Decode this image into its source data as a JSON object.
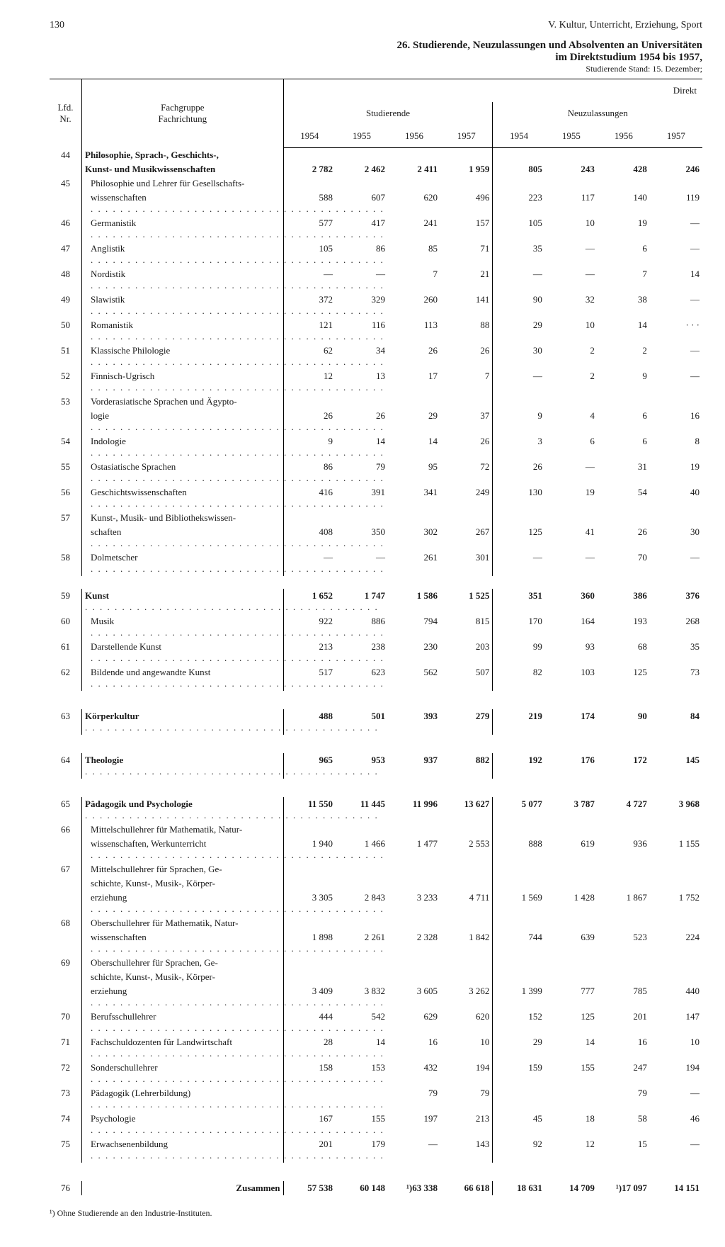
{
  "page_number": "130",
  "running_head": "V. Kultur, Unterricht, Erziehung, Sport",
  "title_line1": "26. Studierende, Neuzulassungen und Absolventen an Universitäten",
  "title_line2": "im Direktstudium 1954 bis 1957,",
  "title_line3": "Studierende Stand: 15. Dezember;",
  "corner_label": "Direkt",
  "col_lfd": "Lfd.\nNr.",
  "col_fach": "Fachgruppe\nFachrichtung",
  "grp_stud": "Studierende",
  "grp_neu": "Neuzulassungen",
  "years": [
    "1954",
    "1955",
    "1956",
    "1957",
    "1954",
    "1955",
    "1956",
    "1957"
  ],
  "rows": [
    {
      "n": "44",
      "label": "Philosophie, Sprach-, Geschichts-,",
      "bold": true,
      "vals": [
        "",
        "",
        "",
        "",
        "",
        "",
        "",
        ""
      ]
    },
    {
      "n": "",
      "label": "Kunst- und Musikwissenschaften",
      "bold": true,
      "nodots": true,
      "vals": [
        "2 782",
        "2 462",
        "2 411",
        "1 959",
        "805",
        "243",
        "428",
        "246"
      ]
    },
    {
      "n": "45",
      "label": "Philosophie und Lehrer für Gesellschafts-",
      "indent": true,
      "nodots": true,
      "vals": [
        "",
        "",
        "",
        "",
        "",
        "",
        "",
        ""
      ]
    },
    {
      "n": "",
      "label": "wissenschaften",
      "indent": true,
      "vals": [
        "588",
        "607",
        "620",
        "496",
        "223",
        "117",
        "140",
        "119"
      ]
    },
    {
      "n": "46",
      "label": "Germanistik",
      "indent": true,
      "vals": [
        "577",
        "417",
        "241",
        "157",
        "105",
        "10",
        "19",
        "—"
      ]
    },
    {
      "n": "47",
      "label": "Anglistik",
      "indent": true,
      "vals": [
        "105",
        "86",
        "85",
        "71",
        "35",
        "—",
        "6",
        "—"
      ]
    },
    {
      "n": "48",
      "label": "Nordistik",
      "indent": true,
      "vals": [
        "—",
        "—",
        "7",
        "21",
        "—",
        "—",
        "7",
        "14"
      ]
    },
    {
      "n": "49",
      "label": "Slawistik",
      "indent": true,
      "vals": [
        "372",
        "329",
        "260",
        "141",
        "90",
        "32",
        "38",
        "—"
      ]
    },
    {
      "n": "50",
      "label": "Romanistik",
      "indent": true,
      "vals": [
        "121",
        "116",
        "113",
        "88",
        "29",
        "10",
        "14",
        "· · ·"
      ]
    },
    {
      "n": "51",
      "label": "Klassische Philologie",
      "indent": true,
      "vals": [
        "62",
        "34",
        "26",
        "26",
        "30",
        "2",
        "2",
        "—"
      ]
    },
    {
      "n": "52",
      "label": "Finnisch-Ugrisch",
      "indent": true,
      "vals": [
        "12",
        "13",
        "17",
        "7",
        "—",
        "2",
        "9",
        "—"
      ]
    },
    {
      "n": "53",
      "label": "Vorderasiatische Sprachen und Ägypto-",
      "indent": true,
      "nodots": true,
      "vals": [
        "",
        "",
        "",
        "",
        "",
        "",
        "",
        ""
      ]
    },
    {
      "n": "",
      "label": "logie",
      "indent": true,
      "vals": [
        "26",
        "26",
        "29",
        "37",
        "9",
        "4",
        "6",
        "16"
      ]
    },
    {
      "n": "54",
      "label": "Indologie",
      "indent": true,
      "vals": [
        "9",
        "14",
        "14",
        "26",
        "3",
        "6",
        "6",
        "8"
      ]
    },
    {
      "n": "55",
      "label": "Ostasiatische Sprachen",
      "indent": true,
      "vals": [
        "86",
        "79",
        "95",
        "72",
        "26",
        "—",
        "31",
        "19"
      ]
    },
    {
      "n": "56",
      "label": "Geschichtswissenschaften",
      "indent": true,
      "vals": [
        "416",
        "391",
        "341",
        "249",
        "130",
        "19",
        "54",
        "40"
      ]
    },
    {
      "n": "57",
      "label": "Kunst-, Musik- und Bibliothekswissen-",
      "indent": true,
      "nodots": true,
      "vals": [
        "",
        "",
        "",
        "",
        "",
        "",
        "",
        ""
      ]
    },
    {
      "n": "",
      "label": "schaften",
      "indent": true,
      "vals": [
        "408",
        "350",
        "302",
        "267",
        "125",
        "41",
        "26",
        "30"
      ]
    },
    {
      "n": "58",
      "label": "Dolmetscher",
      "indent": true,
      "vals": [
        "—",
        "—",
        "261",
        "301",
        "—",
        "—",
        "70",
        "—"
      ]
    },
    {
      "spacer": true
    },
    {
      "n": "59",
      "label": "Kunst",
      "bold": true,
      "vals": [
        "1 652",
        "1 747",
        "1 586",
        "1 525",
        "351",
        "360",
        "386",
        "376"
      ]
    },
    {
      "n": "60",
      "label": "Musik",
      "indent": true,
      "vals": [
        "922",
        "886",
        "794",
        "815",
        "170",
        "164",
        "193",
        "268"
      ]
    },
    {
      "n": "61",
      "label": "Darstellende Kunst",
      "indent": true,
      "vals": [
        "213",
        "238",
        "230",
        "203",
        "99",
        "93",
        "68",
        "35"
      ]
    },
    {
      "n": "62",
      "label": "Bildende und angewandte Kunst",
      "indent": true,
      "vals": [
        "517",
        "623",
        "562",
        "507",
        "82",
        "103",
        "125",
        "73"
      ]
    },
    {
      "bigspacer": true
    },
    {
      "n": "63",
      "label": "Körperkultur",
      "bold": true,
      "vals": [
        "488",
        "501",
        "393",
        "279",
        "219",
        "174",
        "90",
        "84"
      ]
    },
    {
      "bigspacer": true
    },
    {
      "n": "64",
      "label": "Theologie",
      "bold": true,
      "vals": [
        "965",
        "953",
        "937",
        "882",
        "192",
        "176",
        "172",
        "145"
      ]
    },
    {
      "bigspacer": true
    },
    {
      "n": "65",
      "label": "Pädagogik und Psychologie",
      "bold": true,
      "vals": [
        "11 550",
        "11 445",
        "11 996",
        "13 627",
        "5 077",
        "3 787",
        "4 727",
        "3 968"
      ]
    },
    {
      "n": "66",
      "label": "Mittelschullehrer für Mathematik, Natur-",
      "indent": true,
      "nodots": true,
      "vals": [
        "",
        "",
        "",
        "",
        "",
        "",
        "",
        ""
      ]
    },
    {
      "n": "",
      "label": "wissenschaften, Werkunterricht",
      "indent": true,
      "vals": [
        "1 940",
        "1 466",
        "1 477",
        "2 553",
        "888",
        "619",
        "936",
        "1 155"
      ]
    },
    {
      "n": "67",
      "label": "Mittelschullehrer für Sprachen, Ge-",
      "indent": true,
      "nodots": true,
      "vals": [
        "",
        "",
        "",
        "",
        "",
        "",
        "",
        ""
      ]
    },
    {
      "n": "",
      "label": "schichte, Kunst-, Musik-, Körper-",
      "indent": true,
      "nodots": true,
      "vals": [
        "",
        "",
        "",
        "",
        "",
        "",
        "",
        ""
      ]
    },
    {
      "n": "",
      "label": "erziehung",
      "indent": true,
      "vals": [
        "3 305",
        "2 843",
        "3 233",
        "4 711",
        "1 569",
        "1 428",
        "1 867",
        "1 752"
      ]
    },
    {
      "n": "68",
      "label": "Oberschullehrer für Mathematik, Natur-",
      "indent": true,
      "nodots": true,
      "vals": [
        "",
        "",
        "",
        "",
        "",
        "",
        "",
        ""
      ]
    },
    {
      "n": "",
      "label": "wissenschaften",
      "indent": true,
      "vals": [
        "1 898",
        "2 261",
        "2 328",
        "1 842",
        "744",
        "639",
        "523",
        "224"
      ]
    },
    {
      "n": "69",
      "label": "Oberschullehrer für Sprachen, Ge-",
      "indent": true,
      "nodots": true,
      "vals": [
        "",
        "",
        "",
        "",
        "",
        "",
        "",
        ""
      ]
    },
    {
      "n": "",
      "label": "schichte, Kunst-, Musik-, Körper-",
      "indent": true,
      "nodots": true,
      "vals": [
        "",
        "",
        "",
        "",
        "",
        "",
        "",
        ""
      ]
    },
    {
      "n": "",
      "label": "erziehung",
      "indent": true,
      "vals": [
        "3 409",
        "3 832",
        "3 605",
        "3 262",
        "1 399",
        "777",
        "785",
        "440"
      ]
    },
    {
      "n": "70",
      "label": "Berufsschullehrer",
      "indent": true,
      "vals": [
        "444",
        "542",
        "629",
        "620",
        "152",
        "125",
        "201",
        "147"
      ]
    },
    {
      "n": "71",
      "label": "Fachschuldozenten für Landwirtschaft",
      "indent": true,
      "vals": [
        "28",
        "14",
        "16",
        "10",
        "29",
        "14",
        "16",
        "10"
      ]
    },
    {
      "n": "72",
      "label": "Sonderschullehrer",
      "indent": true,
      "vals": [
        "158",
        "153",
        "432",
        "194",
        "159",
        "155",
        "247",
        "194"
      ]
    },
    {
      "n": "73",
      "label": "Pädagogik (Lehrerbildung)",
      "indent": true,
      "vals": [
        "",
        "",
        "79",
        "79",
        "",
        "",
        "79",
        "—"
      ]
    },
    {
      "n": "74",
      "label": "Psychologie",
      "indent": true,
      "vals": [
        "167",
        "155",
        "197",
        "213",
        "45",
        "18",
        "58",
        "46"
      ]
    },
    {
      "n": "75",
      "label": "Erwachsenenbildung",
      "indent": true,
      "vals": [
        "201",
        "179",
        "—",
        "143",
        "92",
        "12",
        "15",
        "—"
      ]
    },
    {
      "bigspacer": true
    },
    {
      "n": "76",
      "label": "Zusammen",
      "bold": true,
      "right": true,
      "nodots": true,
      "vals": [
        "57 538",
        "60 148",
        "¹)63 338",
        "66 618",
        "18 631",
        "14 709",
        "¹)17 097",
        "14 151"
      ]
    }
  ],
  "footnote": "¹) Ohne Studierende an den Industrie-Instituten."
}
